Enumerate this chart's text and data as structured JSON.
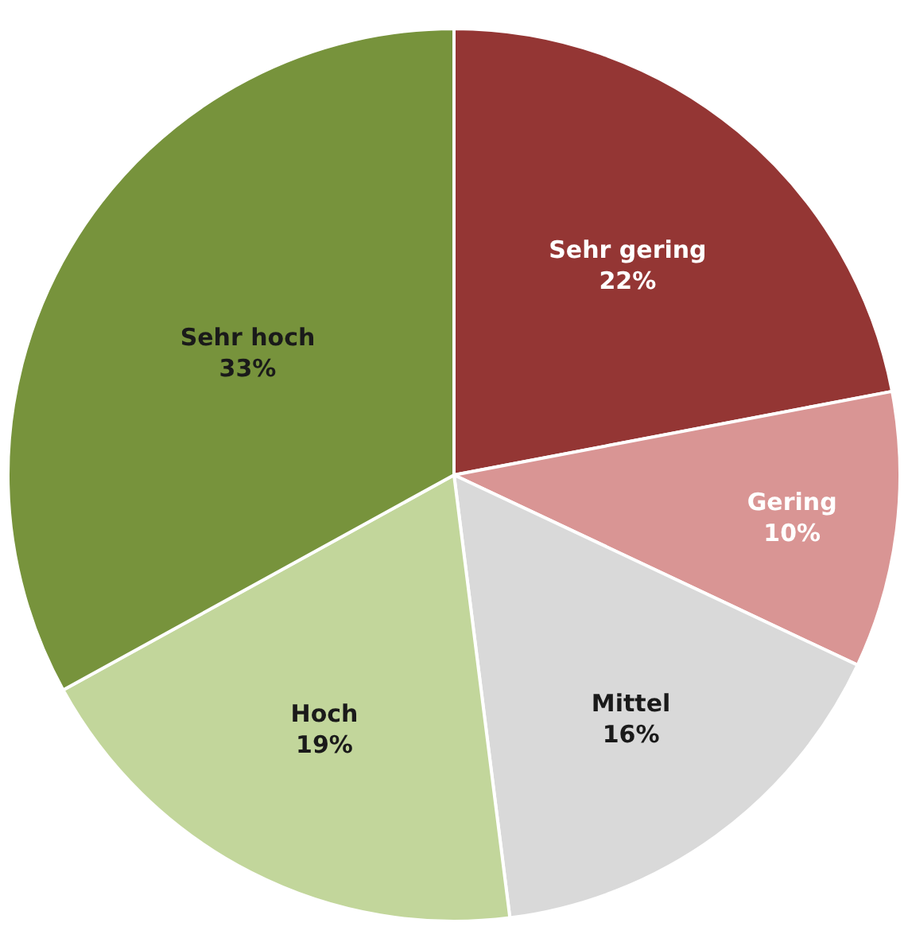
{
  "chart_data": {
    "type": "pie",
    "categories": [
      "Sehr gering",
      "Gering",
      "Mittel",
      "Hoch",
      "Sehr hoch"
    ],
    "values": [
      22,
      10,
      16,
      19,
      33
    ],
    "value_labels": [
      "22%",
      "10%",
      "16%",
      "19%",
      "33%"
    ],
    "colors": [
      "#943634",
      "#d99594",
      "#d9d9d9",
      "#c2d69b",
      "#77933c"
    ],
    "legend": false
  }
}
